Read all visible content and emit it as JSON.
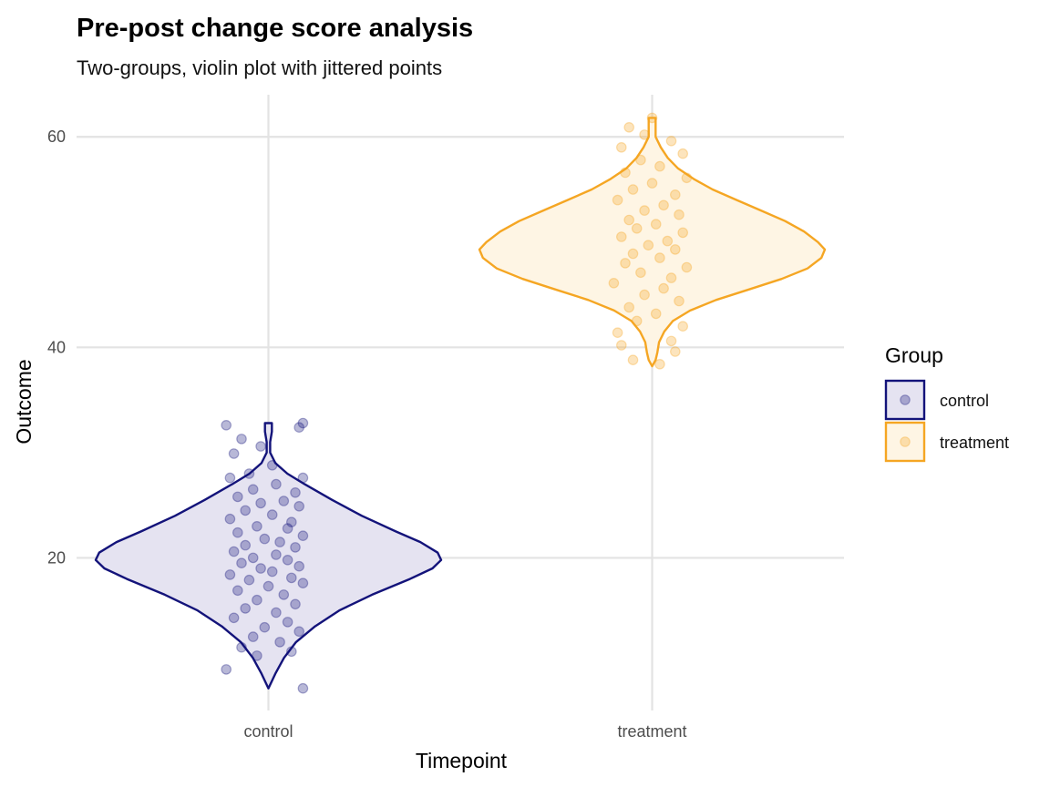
{
  "chart_data": {
    "type": "violin",
    "title": "Pre-post change score analysis",
    "subtitle": "Two-groups, violin plot with jittered points",
    "xlabel": "Timepoint",
    "ylabel": "Outcome",
    "categories": [
      "control",
      "treatment"
    ],
    "ylim": [
      5.5,
      64.0
    ],
    "yticks": [
      20,
      40,
      60
    ],
    "grid": true,
    "legend": {
      "title": "Group",
      "placement": "right",
      "items": [
        "control",
        "treatment"
      ]
    },
    "colors": {
      "control": "#13137a",
      "treatment": "#f5a623"
    },
    "series": [
      {
        "name": "control",
        "category": "control",
        "color": "#13137a",
        "fill": "#e5e3f1",
        "min": 7.6,
        "max": 32.8,
        "density": [
          [
            7.6,
            0.0
          ],
          [
            9.0,
            0.04
          ],
          [
            10.5,
            0.09
          ],
          [
            12.0,
            0.16
          ],
          [
            13.5,
            0.27
          ],
          [
            15.0,
            0.41
          ],
          [
            16.5,
            0.6
          ],
          [
            18.0,
            0.82
          ],
          [
            19.0,
            0.95
          ],
          [
            19.8,
            1.0
          ],
          [
            20.5,
            0.98
          ],
          [
            21.5,
            0.88
          ],
          [
            22.5,
            0.74
          ],
          [
            24.0,
            0.54
          ],
          [
            25.5,
            0.37
          ],
          [
            27.0,
            0.21
          ],
          [
            28.0,
            0.11
          ],
          [
            29.0,
            0.04
          ],
          [
            30.0,
            0.01
          ],
          [
            31.0,
            0.01
          ],
          [
            32.0,
            0.02
          ],
          [
            32.8,
            0.02
          ]
        ],
        "points": [
          [
            -0.11,
            32.6
          ],
          [
            0.08,
            32.4
          ],
          [
            0.09,
            32.8
          ],
          [
            -0.07,
            31.3
          ],
          [
            -0.02,
            30.6
          ],
          [
            -0.09,
            29.9
          ],
          [
            0.01,
            28.8
          ],
          [
            -0.05,
            28.0
          ],
          [
            -0.1,
            27.6
          ],
          [
            0.09,
            27.6
          ],
          [
            0.02,
            27.0
          ],
          [
            -0.04,
            26.5
          ],
          [
            0.07,
            26.2
          ],
          [
            -0.08,
            25.8
          ],
          [
            0.04,
            25.4
          ],
          [
            -0.02,
            25.2
          ],
          [
            0.08,
            24.9
          ],
          [
            -0.06,
            24.5
          ],
          [
            0.01,
            24.1
          ],
          [
            -0.1,
            23.7
          ],
          [
            0.06,
            23.4
          ],
          [
            -0.03,
            23.0
          ],
          [
            0.05,
            22.8
          ],
          [
            -0.08,
            22.4
          ],
          [
            0.09,
            22.1
          ],
          [
            -0.01,
            21.8
          ],
          [
            0.03,
            21.5
          ],
          [
            -0.06,
            21.2
          ],
          [
            0.07,
            21.0
          ],
          [
            -0.09,
            20.6
          ],
          [
            0.02,
            20.3
          ],
          [
            -0.04,
            20.0
          ],
          [
            0.05,
            19.8
          ],
          [
            -0.07,
            19.5
          ],
          [
            0.08,
            19.2
          ],
          [
            -0.02,
            19.0
          ],
          [
            0.01,
            18.7
          ],
          [
            -0.1,
            18.4
          ],
          [
            0.06,
            18.1
          ],
          [
            -0.05,
            17.9
          ],
          [
            0.09,
            17.6
          ],
          [
            0.0,
            17.3
          ],
          [
            -0.08,
            16.9
          ],
          [
            0.04,
            16.5
          ],
          [
            -0.03,
            16.0
          ],
          [
            0.07,
            15.6
          ],
          [
            -0.06,
            15.2
          ],
          [
            0.02,
            14.8
          ],
          [
            -0.09,
            14.3
          ],
          [
            0.05,
            13.9
          ],
          [
            -0.01,
            13.4
          ],
          [
            0.08,
            13.0
          ],
          [
            -0.04,
            12.5
          ],
          [
            0.03,
            12.0
          ],
          [
            -0.07,
            11.5
          ],
          [
            0.06,
            11.1
          ],
          [
            -0.03,
            10.7
          ],
          [
            -0.11,
            9.4
          ],
          [
            0.09,
            7.6
          ]
        ]
      },
      {
        "name": "treatment",
        "category": "treatment",
        "color": "#f5a623",
        "fill": "#fef5e4",
        "min": 38.2,
        "max": 61.8,
        "density": [
          [
            38.2,
            0.0
          ],
          [
            38.8,
            0.02
          ],
          [
            39.5,
            0.03
          ],
          [
            40.5,
            0.04
          ],
          [
            41.5,
            0.07
          ],
          [
            42.5,
            0.12
          ],
          [
            43.5,
            0.22
          ],
          [
            44.5,
            0.37
          ],
          [
            45.5,
            0.56
          ],
          [
            46.5,
            0.75
          ],
          [
            47.5,
            0.9
          ],
          [
            48.5,
            0.98
          ],
          [
            49.3,
            1.0
          ],
          [
            50.0,
            0.96
          ],
          [
            51.0,
            0.88
          ],
          [
            52.0,
            0.77
          ],
          [
            53.0,
            0.63
          ],
          [
            54.0,
            0.49
          ],
          [
            55.0,
            0.35
          ],
          [
            56.0,
            0.24
          ],
          [
            57.0,
            0.15
          ],
          [
            58.0,
            0.09
          ],
          [
            59.0,
            0.05
          ],
          [
            60.0,
            0.02
          ],
          [
            61.0,
            0.02
          ],
          [
            61.8,
            0.02
          ]
        ],
        "points": [
          [
            0.0,
            61.8
          ],
          [
            -0.06,
            60.9
          ],
          [
            -0.02,
            60.2
          ],
          [
            0.05,
            59.6
          ],
          [
            -0.08,
            59.0
          ],
          [
            0.08,
            58.4
          ],
          [
            -0.03,
            57.8
          ],
          [
            0.02,
            57.2
          ],
          [
            -0.07,
            56.6
          ],
          [
            0.09,
            56.1
          ],
          [
            0.0,
            55.6
          ],
          [
            -0.05,
            55.0
          ],
          [
            0.06,
            54.5
          ],
          [
            -0.09,
            54.0
          ],
          [
            0.03,
            53.5
          ],
          [
            -0.02,
            53.0
          ],
          [
            0.07,
            52.6
          ],
          [
            -0.06,
            52.1
          ],
          [
            0.01,
            51.7
          ],
          [
            -0.04,
            51.3
          ],
          [
            0.08,
            50.9
          ],
          [
            -0.08,
            50.5
          ],
          [
            0.04,
            50.1
          ],
          [
            -0.01,
            49.7
          ],
          [
            0.06,
            49.3
          ],
          [
            -0.05,
            48.9
          ],
          [
            0.02,
            48.5
          ],
          [
            -0.07,
            48.0
          ],
          [
            0.09,
            47.6
          ],
          [
            -0.03,
            47.1
          ],
          [
            0.05,
            46.6
          ],
          [
            -0.1,
            46.1
          ],
          [
            0.03,
            45.6
          ],
          [
            -0.02,
            45.0
          ],
          [
            0.07,
            44.4
          ],
          [
            -0.06,
            43.8
          ],
          [
            0.01,
            43.2
          ],
          [
            -0.04,
            42.5
          ],
          [
            0.08,
            42.0
          ],
          [
            -0.09,
            41.4
          ],
          [
            0.05,
            40.6
          ],
          [
            -0.08,
            40.2
          ],
          [
            0.06,
            39.6
          ],
          [
            -0.05,
            38.8
          ],
          [
            0.02,
            38.4
          ]
        ]
      }
    ]
  }
}
